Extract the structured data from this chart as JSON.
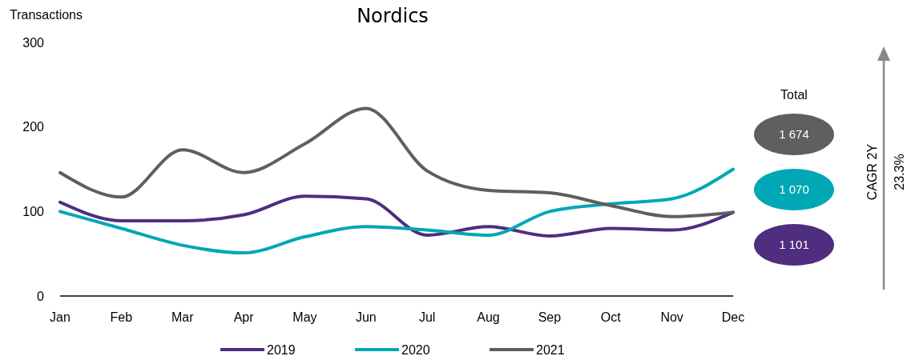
{
  "chart_data": {
    "type": "line",
    "title": "Nordics",
    "ylabel": "Transactions",
    "categories": [
      "Jan",
      "Feb",
      "Mar",
      "Apr",
      "May",
      "Jun",
      "Jul",
      "Aug",
      "Sep",
      "Oct",
      "Nov",
      "Dec"
    ],
    "series": [
      {
        "name": "2019",
        "color": "#4f2d7f",
        "values": [
          111,
          89,
          89,
          96,
          118,
          115,
          72,
          82,
          71,
          80,
          78,
          99
        ]
      },
      {
        "name": "2020",
        "color": "#00a7b5",
        "values": [
          100,
          80,
          60,
          51,
          70,
          82,
          78,
          72,
          100,
          109,
          115,
          150
        ]
      },
      {
        "name": "2021",
        "color": "#5f5f5f",
        "values": [
          146,
          117,
          173,
          146,
          180,
          222,
          148,
          125,
          122,
          107,
          94,
          99
        ]
      }
    ],
    "ylim": [
      0,
      300
    ],
    "yticks": [
      0,
      100,
      200,
      300
    ],
    "grid": false,
    "legend": "bottom",
    "marker": "none",
    "line_style": "solid",
    "annotations": [
      "Total",
      "1 674",
      "1 070",
      "1 101",
      "CAGR 2Y",
      "23.3%"
    ]
  }
}
